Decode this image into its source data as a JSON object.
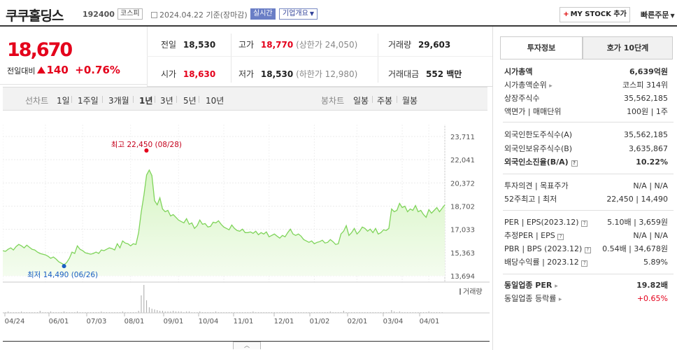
{
  "header": {
    "stock_name": "쿠쿠홀딩스",
    "stock_code": "192400",
    "market": "코스피",
    "date_text": "2024.04.22  기준(장마감)",
    "realtime_label": "실시간",
    "company_info_label": "기업개요",
    "mystock_label": "MY STOCK 추가",
    "quick_order_label": "빠른주문"
  },
  "quote": {
    "current_price": "18,670",
    "change_label": "전일대비",
    "change_value": "140",
    "change_pct": "+0.76%",
    "prev_close_label": "전일",
    "prev_close": "18,530",
    "high_label": "고가",
    "high": "18,770",
    "upper_limit": "(상한가 24,050)",
    "volume_label": "거래량",
    "volume": "29,603",
    "open_label": "시가",
    "open": "18,630",
    "low_label": "저가",
    "low": "18,530",
    "lower_limit": "(하한가 12,980)",
    "value_label": "거래대금",
    "value": "552 백만"
  },
  "chart_tabs": {
    "line_label": "선차트",
    "periods": [
      "1일",
      "1주일",
      "3개월",
      "1년",
      "3년",
      "5년",
      "10년"
    ],
    "active_period": "1년",
    "candle_label": "봉차트",
    "candles": [
      "일봉",
      "주봉",
      "월봉"
    ]
  },
  "right_panel": {
    "tab_invest": "투자정보",
    "tab_hoga": "호가 10단계",
    "market_cap_label": "시가총액",
    "market_cap": "6,639억원",
    "market_cap_rank_label": "시가총액순위",
    "market_cap_rank": "코스피 314위",
    "shares_label": "상장주식수",
    "shares": "35,562,185",
    "par_label": "액면가 | 매매단위",
    "par": "100원 | 1주",
    "foreign_limit_label": "외국인한도주식수(A)",
    "foreign_limit": "35,562,185",
    "foreign_hold_label": "외국인보유주식수(B)",
    "foreign_hold": "3,635,867",
    "foreign_ratio_label": "외국인소진율(B/A)",
    "foreign_ratio": "10.22%",
    "opinion_label": "투자의견 | 목표주가",
    "opinion": "N/A | N/A",
    "w52_label": "52주최고 | 최저",
    "w52": "22,450 | 14,490",
    "per_label": "PER | EPS(2023.12)",
    "per": "5.10배 | 3,659원",
    "est_per_label": "추정PER | EPS",
    "est_per": "N/A | N/A",
    "pbr_label": "PBR | BPS (2023.12)",
    "pbr": "0.54배 | 34,678원",
    "div_label": "배당수익률 | 2023.12",
    "div": "5.89%",
    "ind_per_label": "동일업종 PER",
    "ind_per": "19.82배",
    "ind_rate_label": "동일업종 등락률",
    "ind_rate": "+0.65%"
  },
  "chart_data": {
    "type": "area",
    "y_ticks": [
      "23,711",
      "22,041",
      "20,372",
      "18,702",
      "17,033",
      "15,363",
      "13,694"
    ],
    "ylim": [
      13694,
      23711
    ],
    "x_ticks": [
      "04/24",
      "06/01",
      "07/03",
      "08/01",
      "09/01",
      "10/04",
      "11/01",
      "12/01",
      "01/02",
      "02/01",
      "03/04",
      "04/01"
    ],
    "high_annotation": "최고 22,450 (08/28)",
    "low_annotation": "최저 14,490 (06/26)",
    "volume_label": "거래량",
    "values": [
      15500,
      15450,
      15600,
      15700,
      15550,
      15800,
      15950,
      15850,
      15700,
      15900,
      15750,
      15600,
      15550,
      15400,
      15300,
      15250,
      15200,
      15100,
      14950,
      15050,
      14900,
      14700,
      14600,
      14490,
      14650,
      14950,
      15400,
      15300,
      15850,
      15600,
      15500,
      15350,
      15300,
      15250,
      15300,
      15400,
      15300,
      15550,
      15500,
      15600,
      15700,
      15650,
      15550,
      16000,
      15700,
      16200,
      16050,
      16000,
      15850,
      16000,
      15950,
      16800,
      18300,
      19500,
      20950,
      21300,
      20900,
      19100,
      18800,
      19300,
      18500,
      18300,
      18400,
      18000,
      18100,
      17900,
      17700,
      17600,
      17500,
      17800,
      17400,
      17500,
      17100,
      17300,
      17700,
      17400,
      17450,
      17200,
      17250,
      17550,
      17500,
      17650,
      17400,
      17200,
      17100,
      17000,
      17350,
      17100,
      16950,
      16900,
      17050,
      16800,
      16800,
      16850,
      16750,
      16900,
      16650,
      16800,
      16700,
      16850,
      16500,
      16600,
      16700,
      16550,
      16400,
      16600,
      16500,
      16800,
      17050,
      16700,
      16600,
      16700,
      16550,
      16300,
      16200,
      16100,
      16200,
      16000,
      16100,
      16150,
      16250,
      16050,
      16100,
      16300,
      16150,
      15950,
      16000,
      16700,
      16900,
      17300,
      16600,
      16800,
      17100,
      16700,
      16900,
      17200,
      17100,
      16900,
      17050,
      16800,
      17100,
      16700,
      16800,
      17000,
      16950,
      17100,
      18500,
      18300,
      18400,
      18900,
      18600,
      18700,
      18300,
      18500,
      18400,
      18750,
      18300,
      18400,
      18100,
      17900,
      18450,
      18200,
      18400,
      18600,
      18300,
      18550,
      18800
    ]
  }
}
